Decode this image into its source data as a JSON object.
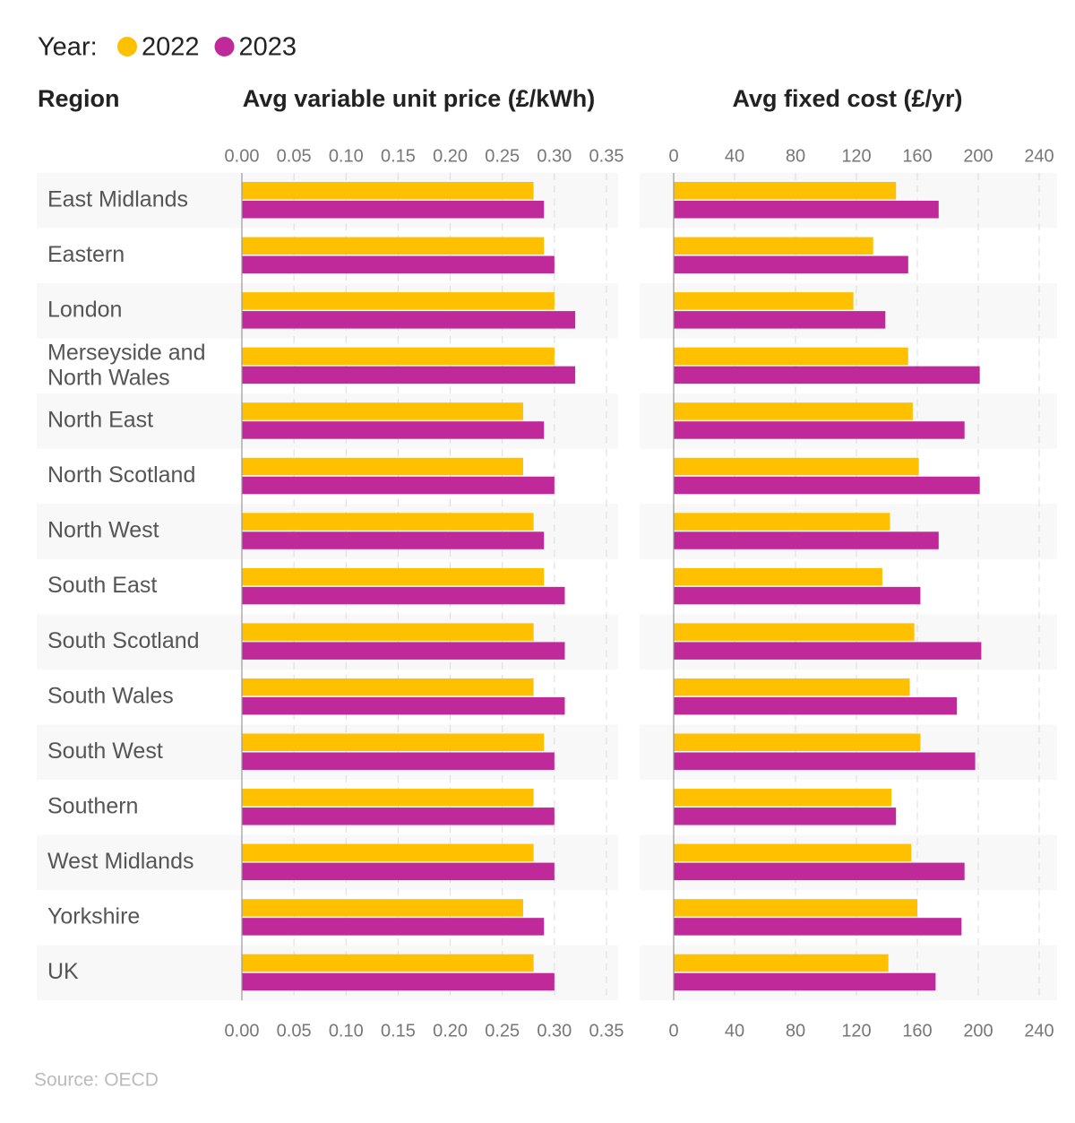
{
  "chart_data": {
    "type": "bar",
    "orientation": "horizontal",
    "legend_title": "Year:",
    "category_header": "Region",
    "legend": [
      {
        "name": "2022",
        "color": "#ffc000"
      },
      {
        "name": "2023",
        "color": "#c0299a"
      }
    ],
    "categories": [
      "East Midlands",
      "Eastern",
      "London",
      "Merseyside and North Wales",
      "North East",
      "North Scotland",
      "North West",
      "South East",
      "South Scotland",
      "South Wales",
      "South West",
      "Southern",
      "West Midlands",
      "Yorkshire",
      "UK"
    ],
    "panels": [
      {
        "title": "Avg variable unit price (£/kWh)",
        "xlim": [
          0,
          0.35
        ],
        "xticks": [
          {
            "value": 0,
            "label": "0.00"
          },
          {
            "value": 0.05,
            "label": "0.05"
          },
          {
            "value": 0.1,
            "label": "0.10"
          },
          {
            "value": 0.15,
            "label": "0.15"
          },
          {
            "value": 0.2,
            "label": "0.20"
          },
          {
            "value": 0.25,
            "label": "0.25"
          },
          {
            "value": 0.3,
            "label": "0.30"
          },
          {
            "value": 0.35,
            "label": "0.35"
          }
        ],
        "series": [
          {
            "values": [
              0.28,
              0.29,
              0.3,
              0.3,
              0.27,
              0.27,
              0.28,
              0.29,
              0.28,
              0.28,
              0.29,
              0.28,
              0.28,
              0.27,
              0.28
            ]
          },
          {
            "values": [
              0.29,
              0.3,
              0.32,
              0.32,
              0.29,
              0.3,
              0.29,
              0.31,
              0.31,
              0.31,
              0.3,
              0.3,
              0.3,
              0.29,
              0.3
            ]
          }
        ]
      },
      {
        "title": "Avg fixed cost (£/yr)",
        "xlim": [
          0,
          240
        ],
        "xticks": [
          0,
          40,
          80,
          120,
          160,
          200,
          240
        ],
        "series": [
          {
            "values": [
              146,
              131,
              118,
              154,
              157,
              161,
              142,
              137,
              158,
              155,
              162,
              143,
              156,
              160,
              141
            ]
          },
          {
            "values": [
              174,
              154,
              139,
              201,
              191,
              201,
              174,
              162,
              202,
              186,
              198,
              146,
              191,
              189,
              172
            ]
          }
        ]
      }
    ],
    "source": "Source: OECD"
  }
}
